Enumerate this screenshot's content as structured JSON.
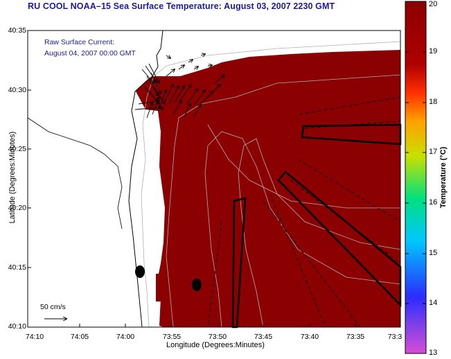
{
  "title": "RU COOL  NOAA–15  Sea Surface Temperature:  August 03, 2007 2230 GMT",
  "current_label_line1": "Raw Surface Current:",
  "current_label_line2": "August 04, 2007 00:00 GMT",
  "scale_label": "50 cm/s",
  "xlabel": "Longitude (Degrees:Minutes)",
  "ylabel": "Latitude (Degrees:Minutes)",
  "x_ticks": [
    "74:10",
    "74:05",
    "74:00",
    "73:55",
    "73:50",
    "73:45",
    "73:40",
    "73:35",
    "73:3"
  ],
  "y_ticks": [
    "40:35",
    "40:30",
    "40:25",
    "40:20",
    "40:15",
    "40:10"
  ],
  "colorbar": {
    "label": "Temperature (°C)",
    "ticks": [
      "20",
      "19",
      "18",
      "17",
      "16",
      "15",
      "14",
      "13"
    ],
    "range": [
      13,
      20
    ],
    "colors": [
      "#d84cd8",
      "#2b2bff",
      "#00c8ff",
      "#00e080",
      "#c8e000",
      "#ffa000",
      "#ff3000",
      "#8b0000"
    ]
  },
  "colors": {
    "sst": "#8b0000",
    "title": "#1a1aa0"
  }
}
